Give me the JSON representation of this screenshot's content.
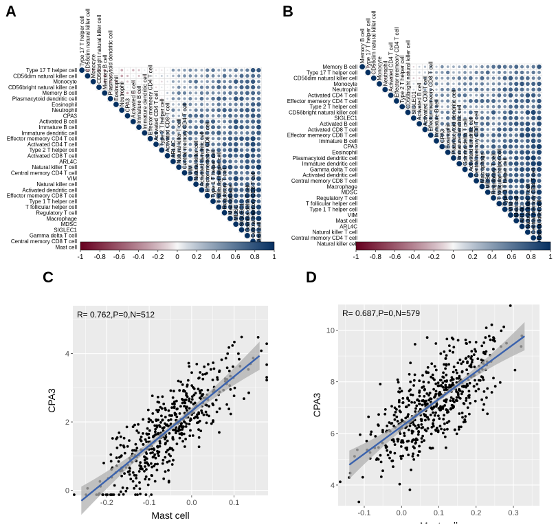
{
  "colors": {
    "neg": "#67001f",
    "mid": "#f7f7f7",
    "pos": "#053061",
    "scatter_bg": "#ebebeb",
    "grid": "#ffffff",
    "point": "#000000",
    "fit": "#3a62ad",
    "band": "#b0b0b0"
  },
  "colorbar_ticks": [
    "-1",
    "-0.8",
    "-0.6",
    "-0.4",
    "-0.2",
    "0",
    "0.2",
    "0.4",
    "0.6",
    "0.8",
    "1"
  ],
  "chart_data": [
    {
      "panel": "A",
      "type": "heatmap",
      "title": "",
      "labels": [
        "Type 17 T helper cell",
        "CD56dim natural killer cell",
        "Monocyte",
        "CD56bright natural killer cell",
        "Memory B cell",
        "Plasmacytoid dendritic cell",
        "Eosinophil",
        "Neutrophil",
        "CPA3",
        "Activated B cell",
        "Immature  B cell",
        "Immature dendritic cell",
        "Effector memeory CD4 T cell",
        "Activated CD4 T cell",
        "Type 2 T helper cell",
        "Activated CD8 T cell",
        "ARL4C",
        "Natural killer T cell",
        "Central memory CD4 T cell",
        "VIM",
        "Natural killer cell",
        "Activated dendritic cell",
        "Effector memeory CD8 T cell",
        "Type 1 T helper cell",
        "T follicular helper cell",
        "Regulatory T cell",
        "Macrophage",
        "MDSC",
        "SIGLEC1",
        "Gamma delta T cell",
        "Central memory CD8 T cell",
        "Mast cell"
      ],
      "value_range": [
        -1,
        1
      ],
      "layout": "upper-triangle correlation matrix, circle size and color encode correlation"
    },
    {
      "panel": "B",
      "type": "heatmap",
      "title": "",
      "labels": [
        "Memory B cell",
        "Type 17 T helper cell",
        "CD56dim natural killer cell",
        "Monocyte",
        "Neutrophil",
        "Activated CD4 T cell",
        "Effector memeory CD4 T cell",
        "Type 2 T helper cell",
        "CD56bright natural killer cell",
        "SIGLEC1",
        "Activated B cell",
        "Activated CD8 T cell",
        "Effector memeory CD8 T cell",
        "Immature  B cell",
        "CPA3",
        "Eosinophil",
        "Plasmacytoid dendritic cell",
        "Immature dendritic cell",
        "Gamma delta T cell",
        "Activated dendritic cell",
        "Central memory CD8 T cell",
        "Macrophage",
        "MDSC",
        "Regulatory T cell",
        "T follicular helper cell",
        "Type 1 T helper cell",
        "VIM",
        "Mast cell",
        "ARL4C",
        "Natural killer T cell",
        "Central memory CD4 T cell",
        "Natural killer cell"
      ],
      "value_range": [
        -1,
        1
      ],
      "layout": "upper-triangle correlation matrix, circle size and color encode correlation"
    },
    {
      "panel": "C",
      "type": "scatter",
      "annotation": "R= 0.762,P=0,N=512",
      "xlabel": "Mast cell",
      "ylabel": "CPA3",
      "xlim": [
        -0.28,
        0.18
      ],
      "ylim": [
        -0.15,
        5.4
      ],
      "xticks": [
        -0.2,
        -0.1,
        0.0,
        0.1
      ],
      "xtick_labels": [
        "-0.2",
        "-0.1",
        "0.0",
        "0.1"
      ],
      "yticks": [
        0,
        2,
        4
      ],
      "ytick_labels": [
        "0",
        "2",
        "4"
      ],
      "fit": {
        "intercept": 2.32,
        "slope": 10.1,
        "x_range": [
          -0.26,
          0.16
        ]
      },
      "n_points": 512,
      "seed": 7
    },
    {
      "panel": "D",
      "type": "scatter",
      "annotation": "R= 0.687,P=0,N=579",
      "xlabel": "Mast cell",
      "ylabel": "CPA3",
      "xlim": [
        -0.17,
        0.37
      ],
      "ylim": [
        3.2,
        11.0
      ],
      "xticks": [
        -0.1,
        0.0,
        0.1,
        0.2,
        0.3
      ],
      "xtick_labels": [
        "-0.1",
        "0.0",
        "0.1",
        "0.2",
        "0.3"
      ],
      "yticks": [
        4,
        6,
        8,
        10
      ],
      "ytick_labels": [
        "4",
        "6",
        "8",
        "10"
      ],
      "fit": {
        "intercept": 6.27,
        "slope": 10.6,
        "x_range": [
          -0.14,
          0.33
        ]
      },
      "n_points": 579,
      "seed": 13
    }
  ]
}
